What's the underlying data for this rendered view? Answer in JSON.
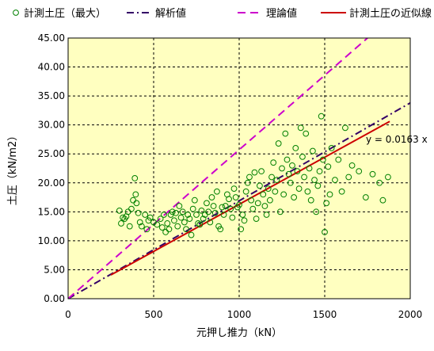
{
  "chart_data": {
    "type": "scatter",
    "x_axis": {
      "label": "元押し推力（kN）",
      "min": 0,
      "max": 2000,
      "ticks": [
        0,
        500,
        1000,
        1500,
        2000
      ],
      "tick_labels": [
        "0",
        "500",
        "1000",
        "1500",
        "2000"
      ]
    },
    "y_axis": {
      "label": "土圧（kN/m2）",
      "min": 0,
      "max": 45,
      "ticks": [
        0,
        5,
        10,
        15,
        20,
        25,
        30,
        35,
        40,
        45
      ],
      "tick_labels": [
        "0.00",
        "5.00",
        "10.00",
        "15.00",
        "20.00",
        "25.00",
        "30.00",
        "35.00",
        "40.00",
        "45.00"
      ]
    },
    "grid": "dashed, major ticks",
    "background": "#ffffc0",
    "legend": {
      "placement": "top",
      "items": [
        {
          "label": "計測土圧（最大）",
          "symbol": "marker",
          "color": "#008000"
        },
        {
          "label": "解析値",
          "symbol": "dashdot",
          "color": "#330066"
        },
        {
          "label": "理論値",
          "symbol": "dash",
          "color": "#cc00cc"
        },
        {
          "label": "計測土圧の近似線",
          "symbol": "solid",
          "color": "#cc0000"
        }
      ]
    },
    "annotation": {
      "text": "y = 0.0163 x",
      "x": 1750,
      "y": 27.3
    },
    "series": [
      {
        "name": "計測土圧（最大）",
        "kind": "scatter",
        "color": "#008000",
        "points": [
          [
            300,
            15.2
          ],
          [
            310,
            13.0
          ],
          [
            320,
            14.0
          ],
          [
            330,
            13.8
          ],
          [
            340,
            14.2
          ],
          [
            350,
            15.0
          ],
          [
            360,
            12.5
          ],
          [
            370,
            15.5
          ],
          [
            380,
            17.0
          ],
          [
            390,
            20.8
          ],
          [
            395,
            18.0
          ],
          [
            400,
            16.5
          ],
          [
            410,
            14.8
          ],
          [
            420,
            13.2
          ],
          [
            430,
            12.5
          ],
          [
            450,
            14.5
          ],
          [
            460,
            12.0
          ],
          [
            470,
            13.5
          ],
          [
            480,
            14.0
          ],
          [
            500,
            13.2
          ],
          [
            520,
            12.8
          ],
          [
            540,
            13.8
          ],
          [
            550,
            12.3
          ],
          [
            560,
            14.5
          ],
          [
            570,
            11.5
          ],
          [
            580,
            13.0
          ],
          [
            590,
            12.0
          ],
          [
            600,
            14.5
          ],
          [
            610,
            15.0
          ],
          [
            620,
            13.5
          ],
          [
            630,
            14.8
          ],
          [
            640,
            12.5
          ],
          [
            650,
            16.0
          ],
          [
            660,
            14.0
          ],
          [
            670,
            15.0
          ],
          [
            680,
            13.2
          ],
          [
            690,
            12.0
          ],
          [
            700,
            14.5
          ],
          [
            710,
            13.8
          ],
          [
            720,
            11.0
          ],
          [
            730,
            15.5
          ],
          [
            740,
            17.0
          ],
          [
            750,
            14.5
          ],
          [
            760,
            13.0
          ],
          [
            770,
            12.8
          ],
          [
            780,
            15.2
          ],
          [
            790,
            13.8
          ],
          [
            800,
            14.5
          ],
          [
            810,
            16.5
          ],
          [
            820,
            15.0
          ],
          [
            830,
            13.2
          ],
          [
            840,
            17.5
          ],
          [
            850,
            16.0
          ],
          [
            860,
            14.8
          ],
          [
            870,
            18.5
          ],
          [
            880,
            12.5
          ],
          [
            890,
            12.0
          ],
          [
            900,
            15.8
          ],
          [
            910,
            14.5
          ],
          [
            920,
            16.0
          ],
          [
            930,
            18.0
          ],
          [
            940,
            17.2
          ],
          [
            950,
            15.5
          ],
          [
            960,
            14.0
          ],
          [
            970,
            19.0
          ],
          [
            980,
            17.5
          ],
          [
            990,
            15.8
          ],
          [
            1000,
            16.2
          ],
          [
            1010,
            12.0
          ],
          [
            1020,
            14.5
          ],
          [
            1030,
            13.5
          ],
          [
            1040,
            18.5
          ],
          [
            1050,
            20.0
          ],
          [
            1060,
            21.0
          ],
          [
            1070,
            17.0
          ],
          [
            1080,
            15.5
          ],
          [
            1090,
            21.8
          ],
          [
            1100,
            13.8
          ],
          [
            1110,
            16.5
          ],
          [
            1120,
            19.5
          ],
          [
            1130,
            22.0
          ],
          [
            1140,
            18.0
          ],
          [
            1150,
            16.0
          ],
          [
            1160,
            14.5
          ],
          [
            1170,
            19.0
          ],
          [
            1180,
            17.0
          ],
          [
            1190,
            21.0
          ],
          [
            1200,
            23.5
          ],
          [
            1210,
            18.5
          ],
          [
            1220,
            20.5
          ],
          [
            1230,
            26.8
          ],
          [
            1240,
            15.0
          ],
          [
            1250,
            22.5
          ],
          [
            1260,
            18.0
          ],
          [
            1270,
            28.5
          ],
          [
            1280,
            24.0
          ],
          [
            1290,
            21.5
          ],
          [
            1300,
            20.0
          ],
          [
            1310,
            23.0
          ],
          [
            1320,
            17.5
          ],
          [
            1330,
            26.0
          ],
          [
            1340,
            22.0
          ],
          [
            1350,
            19.0
          ],
          [
            1360,
            29.5
          ],
          [
            1370,
            24.5
          ],
          [
            1380,
            21.0
          ],
          [
            1390,
            28.5
          ],
          [
            1400,
            18.5
          ],
          [
            1410,
            22.5
          ],
          [
            1420,
            17.0
          ],
          [
            1430,
            25.5
          ],
          [
            1440,
            20.5
          ],
          [
            1450,
            15.0
          ],
          [
            1460,
            19.5
          ],
          [
            1470,
            22.0
          ],
          [
            1480,
            31.5
          ],
          [
            1490,
            24.0
          ],
          [
            1500,
            11.5
          ],
          [
            1510,
            16.5
          ],
          [
            1520,
            22.8
          ],
          [
            1530,
            18.0
          ],
          [
            1540,
            26.0
          ],
          [
            1560,
            20.5
          ],
          [
            1580,
            24.0
          ],
          [
            1600,
            18.5
          ],
          [
            1620,
            29.5
          ],
          [
            1640,
            21.0
          ],
          [
            1660,
            23.0
          ],
          [
            1700,
            22.0
          ],
          [
            1740,
            17.5
          ],
          [
            1780,
            21.5
          ],
          [
            1820,
            20.0
          ],
          [
            1840,
            17.0
          ],
          [
            1870,
            21.0
          ]
        ]
      },
      {
        "name": "解析値",
        "kind": "line",
        "style": "dashdot",
        "color": "#330066",
        "points": [
          [
            0,
            0
          ],
          [
            2000,
            33.8
          ]
        ]
      },
      {
        "name": "理論値",
        "kind": "line",
        "style": "dash",
        "color": "#cc00cc",
        "points": [
          [
            0,
            0
          ],
          [
            1750,
            45
          ]
        ]
      },
      {
        "name": "計測土圧の近似線",
        "kind": "line",
        "style": "solid",
        "color": "#cc0000",
        "points": [
          [
            250,
            4.1
          ],
          [
            1880,
            30.6
          ]
        ]
      }
    ]
  }
}
